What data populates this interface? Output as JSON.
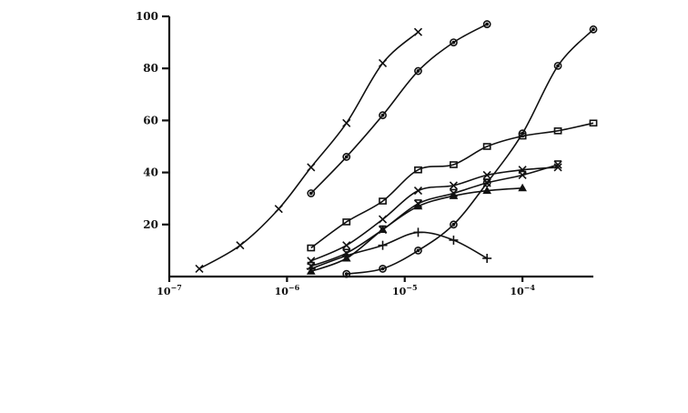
{
  "chart_data": {
    "type": "line",
    "xscale": "log",
    "xlim": [
      1e-07,
      0.0004
    ],
    "ylim": [
      0,
      100
    ],
    "grid": false,
    "title": "",
    "xlabel": "",
    "ylabel": "",
    "x_ticks": [
      {
        "value": 1e-07,
        "base": "10",
        "exp": "−7"
      },
      {
        "value": 1e-06,
        "base": "10",
        "exp": "−6"
      },
      {
        "value": 1e-05,
        "base": "10",
        "exp": "−5"
      },
      {
        "value": 0.0001,
        "base": "10",
        "exp": "−4"
      }
    ],
    "y_ticks": [
      {
        "value": 20,
        "label": "20"
      },
      {
        "value": 40,
        "label": "40"
      },
      {
        "value": 60,
        "label": "60"
      },
      {
        "value": 80,
        "label": "80"
      },
      {
        "value": 100,
        "label": "100"
      }
    ],
    "series": [
      {
        "marker": "x",
        "x": [
          1.8e-07,
          4e-07,
          8.5e-07,
          1.6e-06,
          3.2e-06,
          6.5e-06,
          1.3e-05
        ],
        "y": [
          3,
          12,
          26,
          42,
          59,
          82,
          94
        ]
      },
      {
        "marker": "o",
        "x": [
          1.6e-06,
          3.2e-06,
          6.5e-06,
          1.3e-05,
          2.6e-05,
          5e-05
        ],
        "y": [
          32,
          46,
          62,
          79,
          90,
          97
        ]
      },
      {
        "marker": "square",
        "x": [
          1.6e-06,
          3.2e-06,
          6.5e-06,
          1.3e-05,
          2.6e-05,
          5e-05,
          0.0001,
          0.0002,
          0.0004
        ],
        "y": [
          11,
          21,
          29,
          41,
          43,
          50,
          54,
          56,
          59
        ]
      },
      {
        "marker": "x",
        "x": [
          1.6e-06,
          3.2e-06,
          6.5e-06,
          1.3e-05,
          2.6e-05,
          5e-05,
          0.0001,
          0.0002
        ],
        "y": [
          6,
          12,
          22,
          33,
          35,
          39,
          41,
          42
        ]
      },
      {
        "marker": "x-bar",
        "x": [
          1.6e-06,
          3.2e-06,
          6.5e-06,
          1.3e-05,
          2.6e-05,
          5e-05,
          0.0001,
          0.0002
        ],
        "y": [
          4,
          9,
          18,
          28,
          32,
          36,
          39,
          43
        ]
      },
      {
        "marker": "triangle",
        "x": [
          1.6e-06,
          3.2e-06,
          6.5e-06,
          1.3e-05,
          2.6e-05,
          5e-05,
          0.0001
        ],
        "y": [
          2,
          7,
          18,
          27,
          31,
          33,
          34
        ]
      },
      {
        "marker": "plus",
        "x": [
          1.6e-06,
          3.2e-06,
          6.5e-06,
          1.3e-05,
          2.6e-05,
          5e-05
        ],
        "y": [
          3,
          8,
          12,
          17,
          14,
          7
        ]
      },
      {
        "marker": "o",
        "x": [
          3.2e-06,
          6.5e-06,
          1.3e-05,
          2.6e-05,
          5e-05,
          0.0001,
          0.0002,
          0.0004
        ],
        "y": [
          1,
          3,
          10,
          20,
          36,
          55,
          81,
          95
        ]
      }
    ]
  }
}
